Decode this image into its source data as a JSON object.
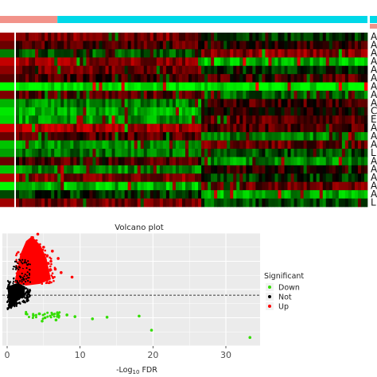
{
  "chart_data": [
    {
      "type": "heatmap",
      "description_level": "visible",
      "group_bar": {
        "colors": [
          "#f2938a",
          "#00d8e8"
        ],
        "split_fraction_of_columns": 0.1
      },
      "color_scale": {
        "low": "#00ff00",
        "mid": "#000000",
        "high": "#ff0000"
      },
      "n_rows": 21,
      "n_columns": 110,
      "row_labels": [
        "A",
        "A",
        "A",
        "A",
        "A",
        "A",
        "A",
        "A",
        "A",
        "C",
        "E",
        "A",
        "A",
        "A",
        "L",
        "A",
        "A",
        "A",
        "A",
        "A",
        "L"
      ],
      "row_profiles": [
        {
          "left": 0.45,
          "right": -0.2
        },
        {
          "left": 0.3,
          "right": 0.2
        },
        {
          "left": -0.35,
          "right": 0.5
        },
        {
          "left": 0.55,
          "right": -0.7
        },
        {
          "left": 0.4,
          "right": -0.15
        },
        {
          "left": 0.25,
          "right": 0.3
        },
        {
          "left": -0.95,
          "right": -0.95
        },
        {
          "left": 0.35,
          "right": -0.4
        },
        {
          "left": -0.5,
          "right": 0.25
        },
        {
          "left": -0.65,
          "right": 0.1
        },
        {
          "left": -0.6,
          "right": 0.35
        },
        {
          "left": 0.6,
          "right": 0.3
        },
        {
          "left": 0.3,
          "right": -0.5
        },
        {
          "left": -0.55,
          "right": 0.4
        },
        {
          "left": -0.45,
          "right": -0.3
        },
        {
          "left": 0.3,
          "right": -0.55
        },
        {
          "left": -0.55,
          "right": 0.2
        },
        {
          "left": 0.5,
          "right": -0.2
        },
        {
          "left": -0.7,
          "right": 0.4
        },
        {
          "left": -0.2,
          "right": -0.65
        },
        {
          "left": 0.45,
          "right": -0.3
        }
      ]
    },
    {
      "type": "scatter",
      "title": "Volcano plot",
      "xlabel_main": "-Log",
      "xlabel_sub": "10",
      "xlabel_rest": " FDR",
      "ylabel": "",
      "xlim": [
        0,
        36
      ],
      "ylim": [
        -1,
        1
      ],
      "x_ticks": [
        0,
        10,
        20,
        30
      ],
      "threshold_line_y": -0.1,
      "grid": true,
      "legend": {
        "title": "Significant",
        "position": "right",
        "entries": [
          {
            "label": "Down",
            "color": "#33dd00"
          },
          {
            "label": "Not",
            "color": "#000000"
          },
          {
            "label": "Up",
            "color": "#ff0000"
          }
        ]
      },
      "series": [
        {
          "name": "Up",
          "color": "#ff0000",
          "points": [
            [
              3.0,
              0.85
            ],
            [
              3.5,
              0.92
            ],
            [
              4.0,
              0.7
            ],
            [
              4.2,
              0.98
            ],
            [
              5.0,
              0.75
            ],
            [
              5.5,
              0.6
            ],
            [
              6.0,
              0.5
            ],
            [
              6.6,
              0.36
            ],
            [
              7.4,
              0.3
            ],
            [
              8.9,
              0.22
            ],
            [
              7.0,
              0.55
            ],
            [
              2.3,
              0.4
            ],
            [
              3.4,
              0.28
            ],
            [
              6.2,
              0.68
            ],
            [
              5.2,
              0.45
            ]
          ]
        },
        {
          "name": "Down",
          "color": "#33dd00",
          "points": [
            [
              2.6,
              -0.43
            ],
            [
              3.6,
              -0.46
            ],
            [
              4.4,
              -0.43
            ],
            [
              5.2,
              -0.5
            ],
            [
              6.2,
              -0.44
            ],
            [
              7.1,
              -0.47
            ],
            [
              8.2,
              -0.45
            ],
            [
              9.3,
              -0.48
            ],
            [
              11.7,
              -0.52
            ],
            [
              13.7,
              -0.49
            ],
            [
              18.1,
              -0.47
            ],
            [
              19.8,
              -0.72
            ],
            [
              33.3,
              -0.85
            ],
            [
              4.8,
              -0.56
            ],
            [
              6.7,
              -0.54
            ]
          ]
        }
      ]
    }
  ]
}
